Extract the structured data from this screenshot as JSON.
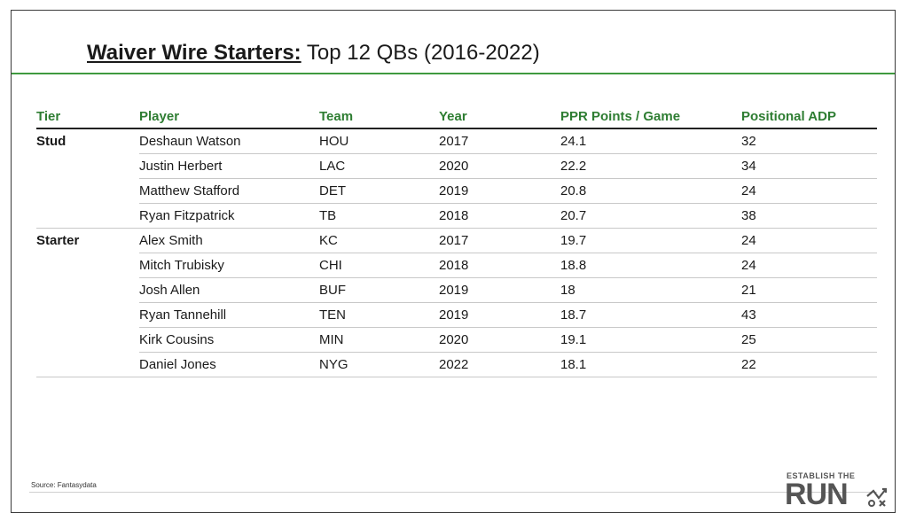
{
  "title": {
    "bold": "Waiver Wire Starters:",
    "rest": " Top 12 QBs (2016-2022)"
  },
  "table": {
    "headers": [
      "Tier",
      "Player",
      "Team",
      "Year",
      "PPR Points / Game",
      "Positional ADP"
    ],
    "rows": [
      {
        "tier": "Stud",
        "player": "Deshaun Watson",
        "team": "HOU",
        "year": "2017",
        "ppr": "24.1",
        "adp": "32"
      },
      {
        "tier": "",
        "player": "Justin Herbert",
        "team": "LAC",
        "year": "2020",
        "ppr": "22.2",
        "adp": "34"
      },
      {
        "tier": "",
        "player": "Matthew Stafford",
        "team": "DET",
        "year": "2019",
        "ppr": "20.8",
        "adp": "24"
      },
      {
        "tier": "",
        "player": "Ryan Fitzpatrick",
        "team": "TB",
        "year": "2018",
        "ppr": "20.7",
        "adp": "38"
      },
      {
        "tier": "Starter",
        "player": "Alex Smith",
        "team": "KC",
        "year": "2017",
        "ppr": "19.7",
        "adp": "24"
      },
      {
        "tier": "",
        "player": "Mitch Trubisky",
        "team": "CHI",
        "year": "2018",
        "ppr": "18.8",
        "adp": "24"
      },
      {
        "tier": "",
        "player": "Josh Allen",
        "team": "BUF",
        "year": "2019",
        "ppr": "18",
        "adp": "21"
      },
      {
        "tier": "",
        "player": "Ryan Tannehill",
        "team": "TEN",
        "year": "2019",
        "ppr": "18.7",
        "adp": "43"
      },
      {
        "tier": "",
        "player": "Kirk Cousins",
        "team": "MIN",
        "year": "2020",
        "ppr": "19.1",
        "adp": "25"
      },
      {
        "tier": "",
        "player": "Daniel Jones",
        "team": "NYG",
        "year": "2022",
        "ppr": "18.1",
        "adp": "22"
      }
    ]
  },
  "source": "Source: Fantasydata",
  "logo": {
    "top": "ESTABLISH THE",
    "main": "RUN",
    "icon": "play-diagram-icon"
  },
  "colors": {
    "header_green": "#2e7d32",
    "rule_green": "#3f9a3f"
  }
}
